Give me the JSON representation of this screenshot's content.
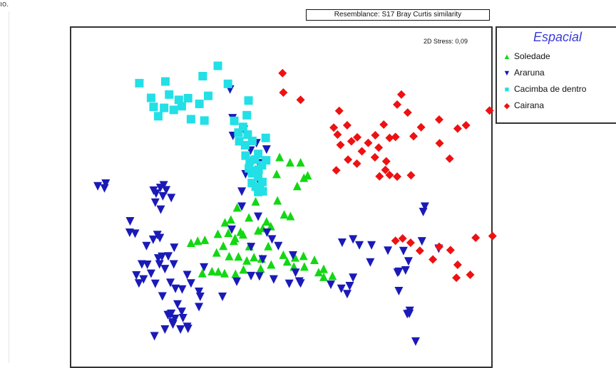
{
  "header": {
    "resemblance_label": "Resemblance: S17 Bray Curtis similarity"
  },
  "annotation": {
    "stress": "2D Stress: 0,09"
  },
  "legend": {
    "title": "Espacial",
    "items": [
      {
        "name": "Soledade",
        "symbol": "triangle-up-icon",
        "color": "#12d812"
      },
      {
        "name": "Araruna",
        "symbol": "triangle-down-icon",
        "color": "#1a1ab8"
      },
      {
        "name": "Cacimba de dentro",
        "symbol": "square-icon",
        "color": "#22e0e6"
      },
      {
        "name": "Cairana",
        "symbol": "diamond-icon",
        "color": "#ee1111"
      }
    ]
  },
  "chart_data": {
    "type": "scatter",
    "title": "",
    "xlabel": "",
    "ylabel": "",
    "xlim": [
      0,
      100
    ],
    "ylim": [
      0,
      100
    ],
    "grid": false,
    "legend_position": "right",
    "series": [
      {
        "name": "Soledade",
        "marker": "triangle-up",
        "color": "#12d812",
        "points": [
          [
            49.6,
            61.3
          ],
          [
            52.1,
            59.7
          ],
          [
            54.6,
            59.7
          ],
          [
            56.3,
            55.8
          ],
          [
            55.4,
            55.1
          ],
          [
            53.8,
            52.6
          ],
          [
            48.9,
            56.2
          ],
          [
            49.1,
            48.3
          ],
          [
            50.7,
            44.1
          ],
          [
            52.2,
            43.6
          ],
          [
            47.5,
            40.6
          ],
          [
            44.5,
            39.3
          ],
          [
            46.5,
            42.0
          ],
          [
            45.6,
            40.0
          ],
          [
            42.3,
            43.2
          ],
          [
            43.9,
            48.0
          ],
          [
            39.5,
            46.2
          ],
          [
            38.0,
            42.6
          ],
          [
            36.6,
            41.7
          ],
          [
            40.9,
            38.1
          ],
          [
            38.7,
            36.2
          ],
          [
            36.2,
            34.7
          ],
          [
            34.6,
            32.7
          ],
          [
            37.6,
            31.6
          ],
          [
            39.8,
            31.5
          ],
          [
            41.8,
            30.3
          ],
          [
            43.5,
            31.3
          ],
          [
            45.3,
            30.9
          ],
          [
            50.5,
            32.0
          ],
          [
            51.4,
            30.0
          ],
          [
            53.3,
            31.2
          ],
          [
            55.3,
            31.7
          ],
          [
            57.9,
            30.5
          ],
          [
            60.1,
            27.8
          ],
          [
            55.5,
            28.5
          ],
          [
            47.6,
            29.1
          ],
          [
            45.1,
            27.9
          ],
          [
            41.0,
            27.6
          ],
          [
            39.1,
            26.3
          ],
          [
            36.5,
            26.5
          ],
          [
            35.0,
            27.0
          ],
          [
            33.5,
            27.1
          ],
          [
            31.2,
            26.5
          ],
          [
            28.5,
            35.6
          ],
          [
            31.8,
            36.5
          ],
          [
            30.1,
            36.2
          ],
          [
            34.9,
            38.3
          ],
          [
            37.4,
            38.6
          ],
          [
            39.0,
            37.0
          ],
          [
            40.3,
            38.9
          ],
          [
            42.4,
            34.6
          ],
          [
            46.9,
            34.6
          ],
          [
            58.9,
            26.8
          ],
          [
            60.1,
            25.4
          ],
          [
            62.2,
            25.7
          ],
          [
            53.0,
            28.5
          ]
        ]
      },
      {
        "name": "Araruna",
        "marker": "triangle-down",
        "color": "#1a1ab8",
        "points": [
          [
            37.8,
            81.5
          ],
          [
            38.4,
            72.9
          ],
          [
            38.5,
            67.6
          ],
          [
            42.7,
            63.2
          ],
          [
            46.5,
            63.5
          ],
          [
            44.6,
            59.4
          ],
          [
            41.5,
            56.1
          ],
          [
            44.4,
            54.6
          ],
          [
            40.6,
            50.9
          ],
          [
            40.6,
            46.4
          ],
          [
            44.5,
            43.4
          ],
          [
            38.2,
            39.5
          ],
          [
            46.6,
            38.6
          ],
          [
            47.8,
            36.6
          ],
          [
            42.8,
            34.3
          ],
          [
            49.3,
            34.6
          ],
          [
            52.8,
            31.8
          ],
          [
            45.6,
            30.6
          ],
          [
            51.9,
            23.3
          ],
          [
            54.6,
            23.4
          ],
          [
            53.4,
            26.6
          ],
          [
            64.5,
            35.6
          ],
          [
            67.1,
            36.6
          ],
          [
            68.6,
            34.8
          ],
          [
            71.5,
            34.8
          ],
          [
            75.4,
            33.2
          ],
          [
            71.2,
            29.7
          ],
          [
            67.1,
            25.1
          ],
          [
            77.7,
            26.6
          ],
          [
            78.0,
            26.9
          ],
          [
            79.6,
            27.3
          ],
          [
            80.3,
            30.0
          ],
          [
            79.1,
            33.1
          ],
          [
            83.5,
            36.0
          ],
          [
            87.5,
            33.8
          ],
          [
            84.2,
            46.4
          ],
          [
            83.8,
            44.8
          ],
          [
            78.0,
            21.1
          ],
          [
            80.6,
            15.2
          ],
          [
            80.5,
            14.3
          ],
          [
            80.0,
            14.2
          ],
          [
            82.0,
            6.0
          ],
          [
            22.0,
            52.8
          ],
          [
            22.6,
            51.3
          ],
          [
            21.2,
            52.0
          ],
          [
            23.8,
            49.0
          ],
          [
            21.8,
            49.5
          ],
          [
            20.2,
            50.3
          ],
          [
            19.6,
            51.2
          ],
          [
            14.0,
            42.0
          ],
          [
            13.9,
            38.6
          ],
          [
            15.2,
            38.3
          ],
          [
            17.9,
            34.6
          ],
          [
            19.5,
            36.5
          ],
          [
            21.1,
            37.0
          ],
          [
            21.6,
            31.4
          ],
          [
            22.3,
            27.7
          ],
          [
            24.4,
            29.1
          ],
          [
            27.6,
            25.9
          ],
          [
            24.8,
            21.8
          ],
          [
            26.4,
            21.6
          ],
          [
            28.5,
            23.4
          ],
          [
            30.4,
            20.9
          ],
          [
            30.7,
            19.4
          ],
          [
            30.4,
            16.3
          ],
          [
            25.3,
            17.1
          ],
          [
            26.3,
            14.9
          ],
          [
            23.8,
            14.3
          ],
          [
            24.7,
            12.8
          ],
          [
            26.0,
            9.6
          ],
          [
            22.3,
            9.6
          ],
          [
            24.1,
            11.7
          ],
          [
            23.0,
            13.9
          ],
          [
            26.6,
            13.0
          ],
          [
            24.2,
            11.1
          ],
          [
            31.6,
            28.2
          ],
          [
            41.1,
            69.4
          ],
          [
            44.1,
            65.4
          ],
          [
            6.3,
            52.5
          ],
          [
            7.9,
            51.9
          ],
          [
            8.2,
            53.3
          ],
          [
            20.0,
            47.6
          ],
          [
            21.3,
            45.5
          ],
          [
            20.5,
            37.9
          ],
          [
            24.5,
            34.1
          ],
          [
            23.1,
            31.5
          ],
          [
            18.1,
            29.0
          ],
          [
            16.8,
            29.1
          ],
          [
            20.0,
            23.3
          ],
          [
            16.1,
            23.4
          ],
          [
            15.5,
            25.8
          ],
          [
            19.0,
            26.3
          ],
          [
            17.2,
            24.6
          ],
          [
            20.7,
            30.9
          ],
          [
            21.0,
            29.1
          ],
          [
            23.6,
            23.6
          ],
          [
            21.7,
            19.5
          ],
          [
            23.5,
            14.0
          ],
          [
            27.6,
            10.4
          ],
          [
            19.8,
            7.6
          ],
          [
            27.8,
            9.8
          ],
          [
            36.0,
            19.4
          ],
          [
            39.4,
            23.9
          ],
          [
            42.8,
            25.6
          ],
          [
            44.8,
            25.5
          ],
          [
            48.2,
            24.6
          ],
          [
            54.3,
            24.0
          ],
          [
            61.8,
            23.0
          ],
          [
            65.7,
            20.2
          ],
          [
            66.3,
            22.6
          ],
          [
            64.3,
            21.8
          ]
        ]
      },
      {
        "name": "Cacimba de dentro",
        "marker": "square",
        "color": "#22e0e6",
        "points": [
          [
            16.2,
            83.4
          ],
          [
            22.4,
            83.9
          ],
          [
            31.3,
            85.5
          ],
          [
            34.9,
            88.6
          ],
          [
            32.6,
            79.6
          ],
          [
            30.5,
            77.2
          ],
          [
            27.8,
            78.9
          ],
          [
            25.6,
            78.4
          ],
          [
            26.3,
            76.5
          ],
          [
            24.4,
            75.4
          ],
          [
            22.1,
            76.0
          ],
          [
            19.0,
            79.0
          ],
          [
            19.6,
            76.3
          ],
          [
            23.3,
            80.0
          ],
          [
            20.7,
            73.5
          ],
          [
            28.5,
            72.6
          ],
          [
            31.7,
            72.2
          ],
          [
            37.3,
            83.2
          ],
          [
            42.2,
            78.2
          ],
          [
            38.8,
            72.1
          ],
          [
            39.8,
            68.6
          ],
          [
            40.9,
            70.3
          ],
          [
            42.0,
            68.0
          ],
          [
            40.0,
            66.0
          ],
          [
            41.4,
            64.8
          ],
          [
            46.3,
            67.0
          ],
          [
            41.5,
            61.7
          ],
          [
            43.7,
            60.5
          ],
          [
            43.0,
            57.2
          ],
          [
            45.4,
            58.8
          ],
          [
            43.1,
            56.4
          ],
          [
            44.5,
            55.4
          ],
          [
            43.0,
            53.5
          ],
          [
            44.5,
            50.8
          ],
          [
            45.6,
            51.0
          ],
          [
            45.5,
            53.8
          ],
          [
            44.6,
            57.5
          ],
          [
            41.8,
            73.8
          ],
          [
            43.1,
            66.1
          ],
          [
            46.4,
            60.3
          ],
          [
            44.5,
            62.2
          ],
          [
            42.5,
            60.1
          ],
          [
            42.3,
            57.9
          ],
          [
            43.9,
            52.4
          ],
          [
            44.9,
            52.3
          ]
        ]
      },
      {
        "name": "Cairana",
        "marker": "diamond",
        "color": "#ee1111",
        "points": [
          [
            50.3,
            86.4
          ],
          [
            50.5,
            80.6
          ],
          [
            54.6,
            78.4
          ],
          [
            63.8,
            75.1
          ],
          [
            62.5,
            70.1
          ],
          [
            63.4,
            68.0
          ],
          [
            64.1,
            64.9
          ],
          [
            65.7,
            70.8
          ],
          [
            66.7,
            66.0
          ],
          [
            68.1,
            67.2
          ],
          [
            69.2,
            63.0
          ],
          [
            70.7,
            65.5
          ],
          [
            72.4,
            67.8
          ],
          [
            72.3,
            61.2
          ],
          [
            73.2,
            64.1
          ],
          [
            74.4,
            71.0
          ],
          [
            75.8,
            67.0
          ],
          [
            77.2,
            67.3
          ],
          [
            75.0,
            60.0
          ],
          [
            73.4,
            55.5
          ],
          [
            74.8,
            57.4
          ],
          [
            77.6,
            55.4
          ],
          [
            80.9,
            55.8
          ],
          [
            81.5,
            67.5
          ],
          [
            83.3,
            70.2
          ],
          [
            87.6,
            72.5
          ],
          [
            87.7,
            65.4
          ],
          [
            90.1,
            60.8
          ],
          [
            94.0,
            70.8
          ],
          [
            99.6,
            75.2
          ],
          [
            80.1,
            74.6
          ],
          [
            77.6,
            77.0
          ],
          [
            78.6,
            80.0
          ],
          [
            63.1,
            57.3
          ],
          [
            65.9,
            60.5
          ],
          [
            68.0,
            59.3
          ],
          [
            75.8,
            55.9
          ],
          [
            77.2,
            36.2
          ],
          [
            78.9,
            36.9
          ],
          [
            80.8,
            35.6
          ],
          [
            83.0,
            33.2
          ],
          [
            86.1,
            30.6
          ],
          [
            87.6,
            34.4
          ],
          [
            90.3,
            33.4
          ],
          [
            92.0,
            29.0
          ],
          [
            96.3,
            37.1
          ],
          [
            100.3,
            37.6
          ],
          [
            91.7,
            25.1
          ],
          [
            95.0,
            26.0
          ],
          [
            92.0,
            69.8
          ]
        ]
      }
    ]
  }
}
